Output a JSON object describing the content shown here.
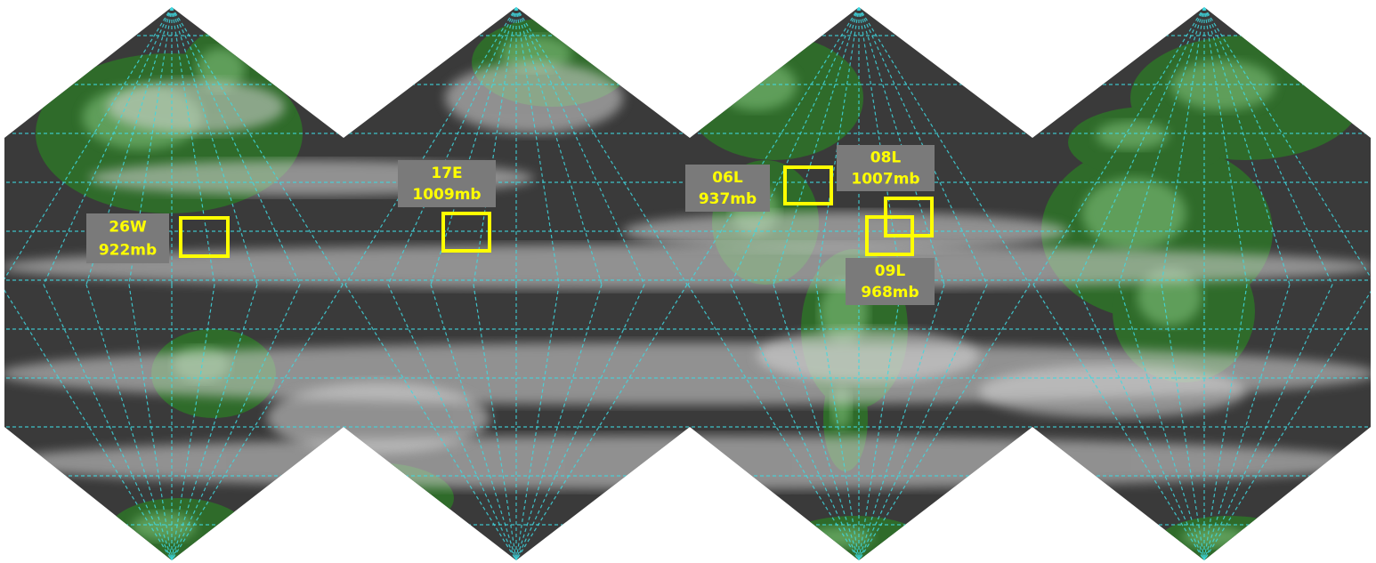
{
  "storms": [
    {
      "id": "26W",
      "pressure": "922mb"
    },
    {
      "id": "17E",
      "pressure": "1009mb"
    },
    {
      "id": "06L",
      "pressure": "937mb"
    },
    {
      "id": "08L",
      "pressure": "1007mb"
    },
    {
      "id": "09L",
      "pressure": "968mb"
    }
  ]
}
